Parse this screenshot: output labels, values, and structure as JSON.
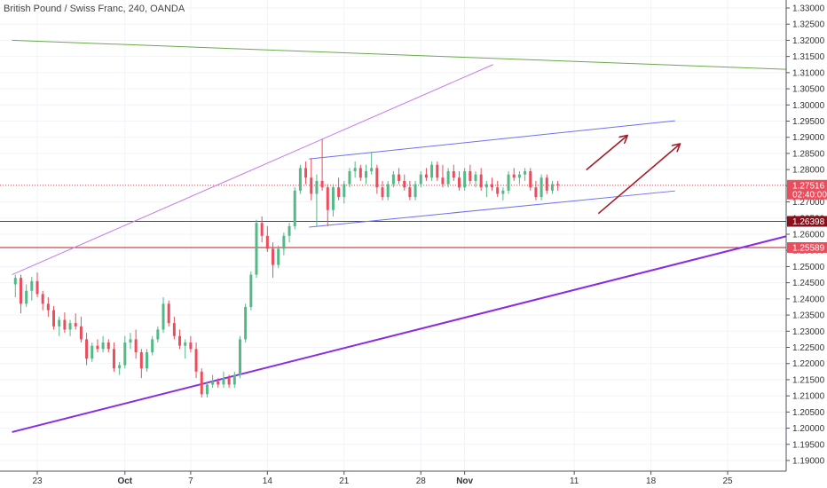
{
  "header": {
    "title": "British Pound / Swiss Franc, 240, OANDA"
  },
  "colors": {
    "up": "#53b987",
    "down": "#eb4d5c",
    "down_dark": "#c0262e",
    "grid": "#f0f3fa",
    "axis": "#50535e",
    "green_trend": "#6aa84f",
    "violet": "#c27ce6",
    "purple": "#8a2be2",
    "blue": "#6f6ff0",
    "horizontal_line": "#b71c1c",
    "price_line": "#eb4d5c",
    "arrow": "#a31c28",
    "badge_dark": "#8b0f1a",
    "badge_red": "#eb4d5c"
  },
  "chart_data": {
    "type": "candlestick",
    "symbol": "British Pound / Swiss Franc",
    "interval": "240",
    "source": "OANDA",
    "ylim": [
      1.185,
      1.335
    ],
    "y_ticks": [
      "1.33000",
      "1.32500",
      "1.32000",
      "1.31500",
      "1.31000",
      "1.30500",
      "1.30000",
      "1.29500",
      "1.29000",
      "1.28500",
      "1.28000",
      "1.27500",
      "1.27000",
      "1.26500",
      "1.26000",
      "1.25500",
      "1.25000",
      "1.24500",
      "1.24000",
      "1.23500",
      "1.23000",
      "1.22500",
      "1.22000",
      "1.21500",
      "1.21000",
      "1.20500",
      "1.20000",
      "1.19500",
      "1.19000"
    ],
    "x_ticks": [
      {
        "label": "23",
        "day": 0,
        "bold": false
      },
      {
        "label": "Oct",
        "day": 8,
        "bold": true
      },
      {
        "label": "7",
        "day": 14,
        "bold": false
      },
      {
        "label": "14",
        "day": 21,
        "bold": false
      },
      {
        "label": "21",
        "day": 28,
        "bold": false
      },
      {
        "label": "28",
        "day": 35,
        "bold": false
      },
      {
        "label": "Nov",
        "day": 39,
        "bold": true
      },
      {
        "label": "11",
        "day": 49,
        "bold": false
      },
      {
        "label": "18",
        "day": 56,
        "bold": false
      },
      {
        "label": "25",
        "day": 63,
        "bold": false
      }
    ],
    "x_range_days": [
      -2.3,
      68.5
    ],
    "current_price": {
      "value": 1.27516,
      "label": "1.27516",
      "countdown": "02:40:00"
    },
    "horizontal_levels": [
      {
        "value": 1.26398,
        "label": "1.26398",
        "style": "dark"
      },
      {
        "value": 1.25589,
        "label": "1.25589",
        "style": "red"
      }
    ],
    "trendlines": [
      {
        "name": "green-resistance",
        "color": "green_trend",
        "points": [
          [
            -2.3,
            1.32
          ],
          [
            68.5,
            1.311
          ]
        ]
      },
      {
        "name": "violet-upper",
        "color": "violet",
        "points": [
          [
            -2.3,
            1.2475
          ],
          [
            41.6,
            1.3125
          ]
        ]
      },
      {
        "name": "purple-support",
        "color": "purple",
        "points": [
          [
            -2.3,
            1.1988
          ],
          [
            68.5,
            1.2595
          ]
        ]
      },
      {
        "name": "channel-upper",
        "color": "blue",
        "points": [
          [
            24.8,
            1.2833
          ],
          [
            58.2,
            1.2951
          ]
        ]
      },
      {
        "name": "channel-lower",
        "color": "blue",
        "points": [
          [
            24.8,
            1.2622
          ],
          [
            58.2,
            1.2734
          ]
        ]
      }
    ],
    "arrows": [
      {
        "from": [
          50.1,
          1.2799
        ],
        "to": [
          53.8,
          1.2904
        ]
      },
      {
        "from": [
          51.2,
          1.2664
        ],
        "to": [
          58.6,
          1.2878
        ]
      }
    ],
    "candles": [
      {
        "d": -2.0,
        "o": 1.2445,
        "h": 1.2475,
        "l": 1.2405,
        "c": 1.2465
      },
      {
        "d": -1.5,
        "o": 1.2465,
        "h": 1.2475,
        "l": 1.2355,
        "c": 1.2385
      },
      {
        "d": -1.0,
        "o": 1.2385,
        "h": 1.2445,
        "l": 1.2375,
        "c": 1.2425
      },
      {
        "d": -0.5,
        "o": 1.2425,
        "h": 1.2468,
        "l": 1.2395,
        "c": 1.2455
      },
      {
        "d": 0.0,
        "o": 1.2455,
        "h": 1.2482,
        "l": 1.2405,
        "c": 1.2415
      },
      {
        "d": 0.5,
        "o": 1.2415,
        "h": 1.2425,
        "l": 1.2365,
        "c": 1.2385
      },
      {
        "d": 1.0,
        "o": 1.2385,
        "h": 1.2405,
        "l": 1.2345,
        "c": 1.2365
      },
      {
        "d": 1.5,
        "o": 1.2365,
        "h": 1.2378,
        "l": 1.2305,
        "c": 1.2315
      },
      {
        "d": 2.0,
        "o": 1.2315,
        "h": 1.2345,
        "l": 1.2285,
        "c": 1.2335
      },
      {
        "d": 2.5,
        "o": 1.2335,
        "h": 1.2358,
        "l": 1.2295,
        "c": 1.2305
      },
      {
        "d": 3.0,
        "o": 1.2305,
        "h": 1.2335,
        "l": 1.2285,
        "c": 1.2325
      },
      {
        "d": 3.5,
        "o": 1.2325,
        "h": 1.2355,
        "l": 1.2305,
        "c": 1.2315
      },
      {
        "d": 4.0,
        "o": 1.2315,
        "h": 1.2345,
        "l": 1.2265,
        "c": 1.2275
      },
      {
        "d": 4.5,
        "o": 1.2275,
        "h": 1.2295,
        "l": 1.2195,
        "c": 1.2215
      },
      {
        "d": 5.0,
        "o": 1.2215,
        "h": 1.2265,
        "l": 1.2205,
        "c": 1.2255
      },
      {
        "d": 5.5,
        "o": 1.2255,
        "h": 1.2275,
        "l": 1.2235,
        "c": 1.2245
      },
      {
        "d": 6.0,
        "o": 1.2245,
        "h": 1.2285,
        "l": 1.2235,
        "c": 1.2265
      },
      {
        "d": 6.5,
        "o": 1.2265,
        "h": 1.2275,
        "l": 1.2235,
        "c": 1.2245
      },
      {
        "d": 7.0,
        "o": 1.2245,
        "h": 1.2265,
        "l": 1.2175,
        "c": 1.2185
      },
      {
        "d": 7.5,
        "o": 1.2185,
        "h": 1.2205,
        "l": 1.2165,
        "c": 1.2195
      },
      {
        "d": 8.0,
        "o": 1.2195,
        "h": 1.2285,
        "l": 1.2185,
        "c": 1.2265
      },
      {
        "d": 8.5,
        "o": 1.2265,
        "h": 1.2295,
        "l": 1.2245,
        "c": 1.2275
      },
      {
        "d": 9.0,
        "o": 1.2275,
        "h": 1.2305,
        "l": 1.2215,
        "c": 1.2235
      },
      {
        "d": 9.5,
        "o": 1.2235,
        "h": 1.2245,
        "l": 1.2155,
        "c": 1.2185
      },
      {
        "d": 10.0,
        "o": 1.2185,
        "h": 1.2245,
        "l": 1.2175,
        "c": 1.2235
      },
      {
        "d": 10.5,
        "o": 1.2235,
        "h": 1.2285,
        "l": 1.2225,
        "c": 1.2275
      },
      {
        "d": 11.0,
        "o": 1.2275,
        "h": 1.2315,
        "l": 1.2265,
        "c": 1.2305
      },
      {
        "d": 11.5,
        "o": 1.2305,
        "h": 1.2405,
        "l": 1.2295,
        "c": 1.2385
      },
      {
        "d": 12.0,
        "o": 1.2385,
        "h": 1.2395,
        "l": 1.2315,
        "c": 1.2325
      },
      {
        "d": 12.5,
        "o": 1.2325,
        "h": 1.2345,
        "l": 1.2275,
        "c": 1.2285
      },
      {
        "d": 13.0,
        "o": 1.2285,
        "h": 1.2305,
        "l": 1.2245,
        "c": 1.2255
      },
      {
        "d": 13.5,
        "o": 1.2255,
        "h": 1.2275,
        "l": 1.2215,
        "c": 1.2265
      },
      {
        "d": 14.0,
        "o": 1.2265,
        "h": 1.2285,
        "l": 1.2235,
        "c": 1.2245
      },
      {
        "d": 14.5,
        "o": 1.2245,
        "h": 1.2265,
        "l": 1.2155,
        "c": 1.2175
      },
      {
        "d": 15.0,
        "o": 1.2175,
        "h": 1.2185,
        "l": 1.2095,
        "c": 1.2105
      },
      {
        "d": 15.5,
        "o": 1.2105,
        "h": 1.2145,
        "l": 1.2095,
        "c": 1.2135
      },
      {
        "d": 16.0,
        "o": 1.2135,
        "h": 1.2165,
        "l": 1.2125,
        "c": 1.2145
      },
      {
        "d": 16.5,
        "o": 1.2145,
        "h": 1.2155,
        "l": 1.2125,
        "c": 1.2135
      },
      {
        "d": 17.0,
        "o": 1.2135,
        "h": 1.2175,
        "l": 1.2125,
        "c": 1.2155
      },
      {
        "d": 17.5,
        "o": 1.2155,
        "h": 1.2165,
        "l": 1.2125,
        "c": 1.2135
      },
      {
        "d": 18.0,
        "o": 1.2135,
        "h": 1.2175,
        "l": 1.2125,
        "c": 1.2165
      },
      {
        "d": 18.5,
        "o": 1.2165,
        "h": 1.2285,
        "l": 1.2155,
        "c": 1.2275
      },
      {
        "d": 19.0,
        "o": 1.2275,
        "h": 1.2385,
        "l": 1.2265,
        "c": 1.2375
      },
      {
        "d": 19.5,
        "o": 1.2375,
        "h": 1.2485,
        "l": 1.2365,
        "c": 1.2475
      },
      {
        "d": 20.0,
        "o": 1.2475,
        "h": 1.2645,
        "l": 1.2465,
        "c": 1.2635
      },
      {
        "d": 20.5,
        "o": 1.2635,
        "h": 1.2655,
        "l": 1.2575,
        "c": 1.2595
      },
      {
        "d": 21.0,
        "o": 1.2595,
        "h": 1.2625,
        "l": 1.2545,
        "c": 1.2555
      },
      {
        "d": 21.5,
        "o": 1.2555,
        "h": 1.2575,
        "l": 1.2465,
        "c": 1.2505
      },
      {
        "d": 22.0,
        "o": 1.2505,
        "h": 1.2565,
        "l": 1.2495,
        "c": 1.2555
      },
      {
        "d": 22.5,
        "o": 1.2555,
        "h": 1.2605,
        "l": 1.2535,
        "c": 1.2595
      },
      {
        "d": 23.0,
        "o": 1.2595,
        "h": 1.2635,
        "l": 1.2575,
        "c": 1.2625
      },
      {
        "d": 23.5,
        "o": 1.2625,
        "h": 1.2745,
        "l": 1.2615,
        "c": 1.2735
      },
      {
        "d": 24.0,
        "o": 1.2735,
        "h": 1.2815,
        "l": 1.2725,
        "c": 1.2805
      },
      {
        "d": 24.5,
        "o": 1.2805,
        "h": 1.2825,
        "l": 1.2755,
        "c": 1.2775
      },
      {
        "d": 25.0,
        "o": 1.2775,
        "h": 1.2835,
        "l": 1.2705,
        "c": 1.2725
      },
      {
        "d": 25.5,
        "o": 1.2725,
        "h": 1.2785,
        "l": 1.2625,
        "c": 1.2765
      },
      {
        "d": 26.0,
        "o": 1.2765,
        "h": 1.2895,
        "l": 1.2735,
        "c": 1.2745
      },
      {
        "d": 26.5,
        "o": 1.2745,
        "h": 1.2755,
        "l": 1.2625,
        "c": 1.2675
      },
      {
        "d": 27.0,
        "o": 1.2675,
        "h": 1.2755,
        "l": 1.2655,
        "c": 1.2745
      },
      {
        "d": 27.5,
        "o": 1.2745,
        "h": 1.2775,
        "l": 1.2705,
        "c": 1.2715
      },
      {
        "d": 28.0,
        "o": 1.2715,
        "h": 1.2765,
        "l": 1.2695,
        "c": 1.2755
      },
      {
        "d": 28.5,
        "o": 1.2755,
        "h": 1.2805,
        "l": 1.2745,
        "c": 1.2795
      },
      {
        "d": 29.0,
        "o": 1.2795,
        "h": 1.2825,
        "l": 1.2775,
        "c": 1.2805
      },
      {
        "d": 29.5,
        "o": 1.2805,
        "h": 1.2815,
        "l": 1.2765,
        "c": 1.2775
      },
      {
        "d": 30.0,
        "o": 1.2775,
        "h": 1.2815,
        "l": 1.2755,
        "c": 1.2795
      },
      {
        "d": 30.5,
        "o": 1.2795,
        "h": 1.2855,
        "l": 1.2785,
        "c": 1.2805
      },
      {
        "d": 31.0,
        "o": 1.2805,
        "h": 1.2815,
        "l": 1.2725,
        "c": 1.2745
      },
      {
        "d": 31.5,
        "o": 1.2745,
        "h": 1.2765,
        "l": 1.2705,
        "c": 1.2715
      },
      {
        "d": 32.0,
        "o": 1.2715,
        "h": 1.2765,
        "l": 1.2705,
        "c": 1.2755
      },
      {
        "d": 32.5,
        "o": 1.2755,
        "h": 1.2795,
        "l": 1.2745,
        "c": 1.2785
      },
      {
        "d": 33.0,
        "o": 1.2785,
        "h": 1.2805,
        "l": 1.2755,
        "c": 1.2765
      },
      {
        "d": 33.5,
        "o": 1.2765,
        "h": 1.2785,
        "l": 1.2735,
        "c": 1.2745
      },
      {
        "d": 34.0,
        "o": 1.2745,
        "h": 1.2765,
        "l": 1.2705,
        "c": 1.2715
      },
      {
        "d": 34.5,
        "o": 1.2715,
        "h": 1.2765,
        "l": 1.2705,
        "c": 1.2755
      },
      {
        "d": 35.0,
        "o": 1.2755,
        "h": 1.2795,
        "l": 1.2745,
        "c": 1.2785
      },
      {
        "d": 35.5,
        "o": 1.2785,
        "h": 1.2805,
        "l": 1.2765,
        "c": 1.2775
      },
      {
        "d": 36.0,
        "o": 1.2775,
        "h": 1.2825,
        "l": 1.2765,
        "c": 1.2815
      },
      {
        "d": 36.5,
        "o": 1.2815,
        "h": 1.2825,
        "l": 1.2765,
        "c": 1.2775
      },
      {
        "d": 37.0,
        "o": 1.2775,
        "h": 1.2815,
        "l": 1.2745,
        "c": 1.2755
      },
      {
        "d": 37.5,
        "o": 1.2755,
        "h": 1.2805,
        "l": 1.2745,
        "c": 1.2795
      },
      {
        "d": 38.0,
        "o": 1.2795,
        "h": 1.2815,
        "l": 1.2765,
        "c": 1.2775
      },
      {
        "d": 38.5,
        "o": 1.2775,
        "h": 1.2795,
        "l": 1.2735,
        "c": 1.2745
      },
      {
        "d": 39.0,
        "o": 1.2745,
        "h": 1.2805,
        "l": 1.2735,
        "c": 1.2795
      },
      {
        "d": 39.5,
        "o": 1.2795,
        "h": 1.2815,
        "l": 1.2755,
        "c": 1.2765
      },
      {
        "d": 40.0,
        "o": 1.2765,
        "h": 1.2795,
        "l": 1.2745,
        "c": 1.2785
      },
      {
        "d": 40.5,
        "o": 1.2785,
        "h": 1.2805,
        "l": 1.2735,
        "c": 1.2745
      },
      {
        "d": 41.0,
        "o": 1.2745,
        "h": 1.2765,
        "l": 1.2715,
        "c": 1.2755
      },
      {
        "d": 41.5,
        "o": 1.2755,
        "h": 1.2775,
        "l": 1.2735,
        "c": 1.2745
      },
      {
        "d": 42.0,
        "o": 1.2745,
        "h": 1.2765,
        "l": 1.2715,
        "c": 1.2725
      },
      {
        "d": 42.5,
        "o": 1.2725,
        "h": 1.2745,
        "l": 1.2705,
        "c": 1.2735
      },
      {
        "d": 43.0,
        "o": 1.2735,
        "h": 1.2795,
        "l": 1.2725,
        "c": 1.2785
      },
      {
        "d": 43.5,
        "o": 1.2785,
        "h": 1.2805,
        "l": 1.2765,
        "c": 1.2775
      },
      {
        "d": 44.0,
        "o": 1.2775,
        "h": 1.2795,
        "l": 1.2755,
        "c": 1.2785
      },
      {
        "d": 44.5,
        "o": 1.2785,
        "h": 1.2805,
        "l": 1.2765,
        "c": 1.2795
      },
      {
        "d": 45.0,
        "o": 1.2795,
        "h": 1.2805,
        "l": 1.2735,
        "c": 1.2745
      },
      {
        "d": 45.5,
        "o": 1.2745,
        "h": 1.2765,
        "l": 1.2705,
        "c": 1.2715
      },
      {
        "d": 46.0,
        "o": 1.2715,
        "h": 1.2785,
        "l": 1.2705,
        "c": 1.2775
      },
      {
        "d": 46.5,
        "o": 1.2775,
        "h": 1.2785,
        "l": 1.2725,
        "c": 1.2735
      },
      {
        "d": 47.0,
        "o": 1.2735,
        "h": 1.2765,
        "l": 1.2725,
        "c": 1.2755
      },
      {
        "d": 47.5,
        "o": 1.2755,
        "h": 1.2765,
        "l": 1.2735,
        "c": 1.2752
      }
    ]
  }
}
